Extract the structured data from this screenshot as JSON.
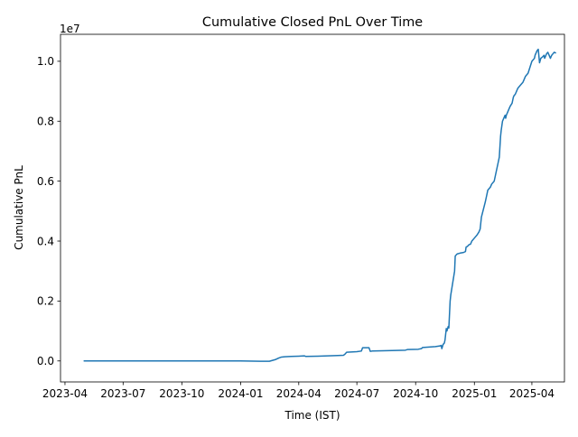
{
  "chart_data": {
    "type": "line",
    "title": "Cumulative Closed PnL Over Time",
    "xlabel": "Time (IST)",
    "ylabel": "Cumulative PnL",
    "y_offset_label": "1e7",
    "y_scale_factor": 10000000,
    "x_tick_labels": [
      "2023-04",
      "2023-07",
      "2023-10",
      "2024-01",
      "2024-04",
      "2024-07",
      "2024-10",
      "2025-01",
      "2025-04"
    ],
    "x_tick_dates": [
      "2023-04-01",
      "2023-07-01",
      "2023-10-01",
      "2024-01-01",
      "2024-04-01",
      "2024-07-01",
      "2024-10-01",
      "2025-01-01",
      "2025-04-01"
    ],
    "y_tick_labels": [
      "0.0",
      "0.2",
      "0.4",
      "0.6",
      "0.8",
      "1.0"
    ],
    "y_tick_values": [
      0,
      0.2,
      0.4,
      0.6,
      0.8,
      1.0
    ],
    "xlim": [
      "2023-03-25",
      "2025-05-22"
    ],
    "ylim": [
      -0.07,
      1.09
    ],
    "grid": false,
    "line_color": "#1f77b4",
    "series": [
      {
        "x": [
          "2023-05-01",
          "2023-08-01",
          "2023-11-01",
          "2024-01-01",
          "2024-02-01",
          "2024-02-15",
          "2024-02-25",
          "2024-03-01",
          "2024-03-05",
          "2024-03-10",
          "2024-03-20",
          "2024-04-01",
          "2024-04-10",
          "2024-04-12",
          "2024-05-01",
          "2024-06-01",
          "2024-06-10",
          "2024-06-12",
          "2024-06-15",
          "2024-07-01",
          "2024-07-08",
          "2024-07-10",
          "2024-07-20",
          "2024-07-22",
          "2024-07-25",
          "2024-08-10",
          "2024-09-01",
          "2024-09-15",
          "2024-09-18",
          "2024-10-05",
          "2024-10-10",
          "2024-10-12",
          "2024-11-01",
          "2024-11-08",
          "2024-11-10",
          "2024-11-11",
          "2024-11-13",
          "2024-11-15",
          "2024-11-16",
          "2024-11-18",
          "2024-11-19",
          "2024-11-21",
          "2024-11-22",
          "2024-11-24",
          "2024-11-25",
          "2024-11-28",
          "2024-12-01",
          "2024-12-02",
          "2024-12-04",
          "2024-12-05",
          "2024-12-10",
          "2024-12-15",
          "2024-12-18",
          "2024-12-19",
          "2024-12-21",
          "2024-12-23",
          "2024-12-26",
          "2024-12-28",
          "2025-01-01",
          "2025-01-05",
          "2025-01-08",
          "2025-01-10",
          "2025-01-12",
          "2025-01-18",
          "2025-01-20",
          "2025-01-21",
          "2025-01-22",
          "2025-01-26",
          "2025-01-28",
          "2025-02-01",
          "2025-02-03",
          "2025-02-05",
          "2025-02-07",
          "2025-02-09",
          "2025-02-11",
          "2025-02-12",
          "2025-02-14",
          "2025-02-16",
          "2025-02-18",
          "2025-02-19",
          "2025-02-20",
          "2025-02-22",
          "2025-02-24",
          "2025-02-26",
          "2025-03-01",
          "2025-03-02",
          "2025-03-03",
          "2025-03-04",
          "2025-03-06",
          "2025-03-08",
          "2025-03-10",
          "2025-03-14",
          "2025-03-18",
          "2025-03-20",
          "2025-03-22",
          "2025-03-26",
          "2025-04-01",
          "2025-04-03",
          "2025-04-05",
          "2025-04-06",
          "2025-04-08",
          "2025-04-09",
          "2025-04-11",
          "2025-04-13",
          "2025-04-15",
          "2025-04-18",
          "2025-04-20",
          "2025-04-21",
          "2025-04-24",
          "2025-04-26",
          "2025-04-28",
          "2025-04-30",
          "2025-05-02",
          "2025-05-04",
          "2025-05-06",
          "2025-05-08"
        ],
        "values": [
          0.0,
          0.0,
          0.0,
          0.0,
          -0.001,
          -0.001,
          0.005,
          0.01,
          0.013,
          0.014,
          0.015,
          0.016,
          0.017,
          0.015,
          0.016,
          0.018,
          0.019,
          0.022,
          0.029,
          0.031,
          0.033,
          0.044,
          0.044,
          0.032,
          0.033,
          0.034,
          0.035,
          0.036,
          0.038,
          0.039,
          0.041,
          0.045,
          0.048,
          0.05,
          0.052,
          0.041,
          0.055,
          0.06,
          0.07,
          0.108,
          0.1,
          0.115,
          0.11,
          0.2,
          0.22,
          0.26,
          0.3,
          0.35,
          0.355,
          0.357,
          0.36,
          0.362,
          0.365,
          0.38,
          0.382,
          0.387,
          0.39,
          0.4,
          0.41,
          0.42,
          0.43,
          0.44,
          0.48,
          0.53,
          0.55,
          0.56,
          0.57,
          0.58,
          0.59,
          0.6,
          0.62,
          0.64,
          0.66,
          0.68,
          0.75,
          0.77,
          0.8,
          0.81,
          0.82,
          0.81,
          0.82,
          0.83,
          0.84,
          0.85,
          0.86,
          0.87,
          0.88,
          0.885,
          0.89,
          0.9,
          0.91,
          0.92,
          0.93,
          0.94,
          0.95,
          0.96,
          1.0,
          1.005,
          1.01,
          1.02,
          1.03,
          1.035,
          1.04,
          0.995,
          1.01,
          1.015,
          1.02,
          1.01,
          1.025,
          1.03,
          1.02,
          1.01,
          1.02,
          1.025,
          1.03,
          1.028
        ]
      }
    ]
  }
}
